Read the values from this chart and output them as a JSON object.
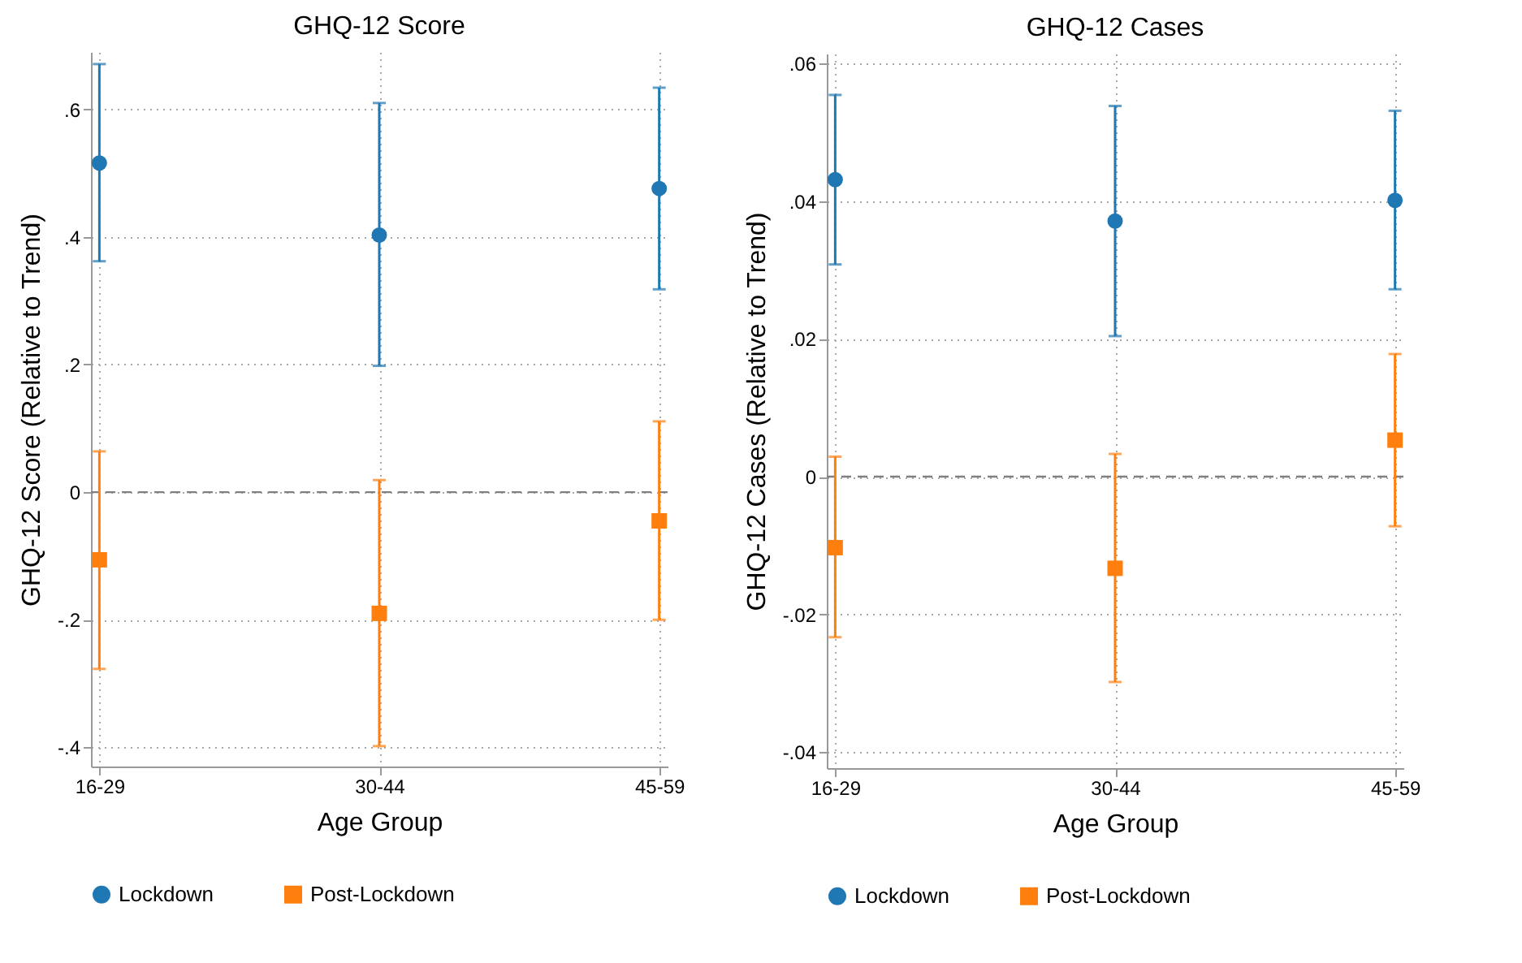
{
  "chart_data": [
    {
      "type": "scatter",
      "title": "GHQ-12 Score",
      "xlabel": "Age Group",
      "ylabel": "GHQ-12 Score (Relative to Trend)",
      "categories": [
        "16-29",
        "30-44",
        "45-59"
      ],
      "ylim": [
        -0.43,
        0.69
      ],
      "yticks": [
        {
          "value": -0.4,
          "label": "-.4"
        },
        {
          "value": -0.2,
          "label": "-.2"
        },
        0,
        {
          "value": 0.2,
          "label": ".2"
        },
        {
          "value": 0.4,
          "label": ".4"
        },
        {
          "value": 0.6,
          "label": ".6"
        }
      ],
      "grid": true,
      "legend": "bottom",
      "ref_lines": [
        {
          "axis": "y",
          "value": 0,
          "color": "#808080",
          "line_style": "dashed"
        }
      ],
      "series": [
        {
          "name": "Lockdown",
          "color": "#1f77b4",
          "marker": "circle",
          "values": [
            0.516,
            0.403,
            0.476
          ],
          "errors": [
            [
              0.362,
              0.671
            ],
            [
              0.198,
              0.61
            ],
            [
              0.318,
              0.634
            ]
          ]
        },
        {
          "name": "Post-Lockdown",
          "color": "#ff7f0e",
          "marker": "square",
          "values": [
            -0.106,
            -0.19,
            -0.045
          ],
          "errors": [
            [
              -0.277,
              0.064
            ],
            [
              -0.398,
              0.019
            ],
            [
              -0.2,
              0.111
            ]
          ]
        }
      ]
    },
    {
      "type": "scatter",
      "title": "GHQ-12 Cases",
      "xlabel": "Age Group",
      "ylabel": "GHQ-12 Cases (Relative to Trend)",
      "categories": [
        "16-29",
        "30-44",
        "45-59"
      ],
      "ylim": [
        -0.0423,
        0.0614
      ],
      "yticks": [
        {
          "value": -0.04,
          "label": "-.04"
        },
        {
          "value": -0.02,
          "label": "-.02"
        },
        0,
        {
          "value": 0.02,
          "label": ".02"
        },
        {
          "value": 0.04,
          "label": ".04"
        },
        {
          "value": 0.06,
          "label": ".06"
        }
      ],
      "grid": true,
      "legend": "bottom",
      "ref_lines": [
        {
          "axis": "y",
          "value": 0,
          "color": "#808080",
          "line_style": "dashed"
        }
      ],
      "series": [
        {
          "name": "Lockdown",
          "color": "#1f77b4",
          "marker": "circle",
          "values": [
            0.0431,
            0.0371,
            0.0401
          ],
          "errors": [
            [
              0.0308,
              0.0554
            ],
            [
              0.0204,
              0.0538
            ],
            [
              0.0272,
              0.0531
            ]
          ]
        },
        {
          "name": "Post-Lockdown",
          "color": "#ff7f0e",
          "marker": "square",
          "values": [
            -0.0103,
            -0.0133,
            0.0053
          ],
          "errors": [
            [
              -0.0233,
              0.0029
            ],
            [
              -0.0298,
              0.0033
            ],
            [
              -0.0072,
              0.0178
            ]
          ]
        }
      ]
    }
  ]
}
